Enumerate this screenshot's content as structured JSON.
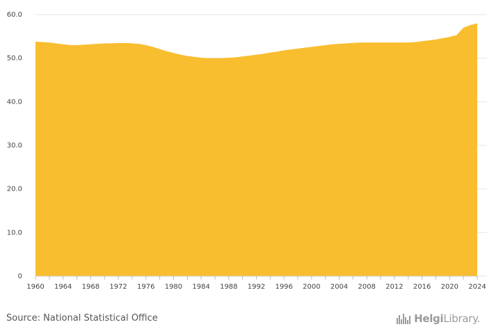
{
  "chart_data": {
    "type": "area",
    "x": [
      1960,
      1961,
      1962,
      1963,
      1964,
      1965,
      1966,
      1967,
      1968,
      1969,
      1970,
      1971,
      1972,
      1973,
      1974,
      1975,
      1976,
      1977,
      1978,
      1979,
      1980,
      1981,
      1982,
      1983,
      1984,
      1985,
      1986,
      1987,
      1988,
      1989,
      1990,
      1991,
      1992,
      1993,
      1994,
      1995,
      1996,
      1997,
      1998,
      1999,
      2000,
      2001,
      2002,
      2003,
      2004,
      2005,
      2006,
      2007,
      2008,
      2009,
      2010,
      2011,
      2012,
      2013,
      2014,
      2015,
      2016,
      2017,
      2018,
      2019,
      2020,
      2021,
      2022,
      2023,
      2024
    ],
    "values": [
      53.8,
      53.7,
      53.6,
      53.4,
      53.2,
      53.0,
      53.0,
      53.1,
      53.2,
      53.3,
      53.4,
      53.4,
      53.5,
      53.5,
      53.4,
      53.3,
      53.0,
      52.6,
      52.1,
      51.6,
      51.2,
      50.8,
      50.5,
      50.3,
      50.1,
      50.0,
      50.0,
      50.0,
      50.1,
      50.2,
      50.4,
      50.6,
      50.8,
      51.0,
      51.3,
      51.5,
      51.8,
      52.0,
      52.2,
      52.4,
      52.6,
      52.8,
      53.0,
      53.2,
      53.3,
      53.4,
      53.5,
      53.6,
      53.6,
      53.6,
      53.6,
      53.6,
      53.6,
      53.6,
      53.6,
      53.7,
      53.9,
      54.1,
      54.3,
      54.6,
      54.9,
      55.3,
      57.0,
      57.6,
      58.0
    ],
    "x_ticks": [
      "1960",
      "1964",
      "1968",
      "1972",
      "1976",
      "1980",
      "1984",
      "1988",
      "1992",
      "1996",
      "2000",
      "2004",
      "2008",
      "2012",
      "2016",
      "2020",
      "2024"
    ],
    "y_ticks": [
      "0",
      "10.0",
      "20.0",
      "30.0",
      "40.0",
      "50.0",
      "60.0"
    ],
    "xlim": [
      1960,
      2024
    ],
    "ylim": [
      0,
      60
    ],
    "grid": true,
    "color": "#f9be2f"
  },
  "footer": {
    "source": "Source: National Statistical Office",
    "brand_main": "Helgi",
    "brand_sub": "Library."
  }
}
